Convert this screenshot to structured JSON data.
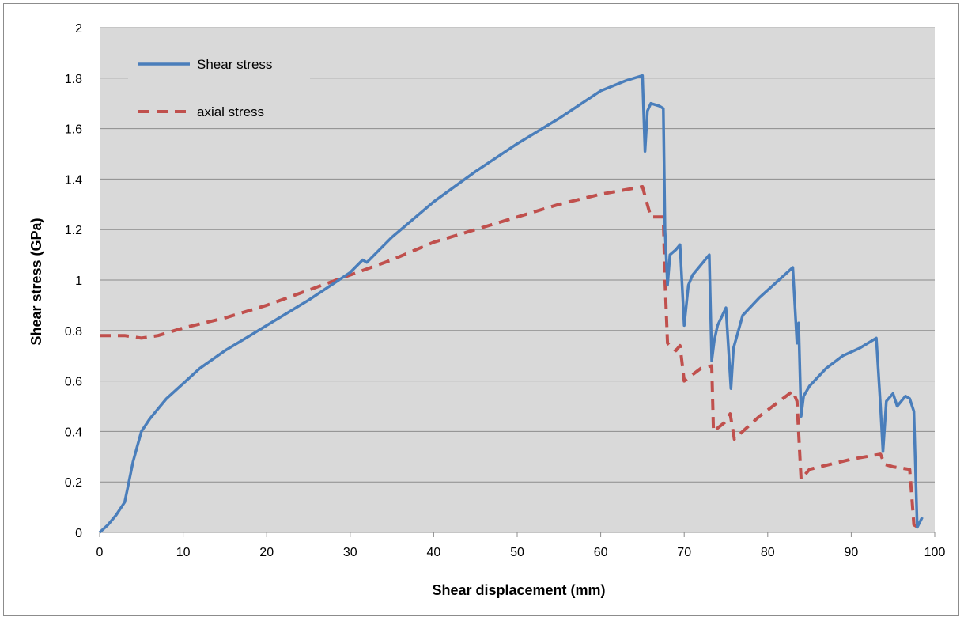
{
  "chart_data": {
    "type": "line",
    "title": "",
    "xlabel": "Shear displacement (mm)",
    "ylabel": "Shear stress (GPa)",
    "xlim": [
      0,
      100
    ],
    "ylim": [
      0,
      2
    ],
    "x_ticks": [
      0,
      10,
      20,
      30,
      40,
      50,
      60,
      70,
      80,
      90,
      100
    ],
    "y_ticks": [
      0,
      0.2,
      0.4,
      0.6,
      0.8,
      1,
      1.2,
      1.4,
      1.6,
      1.8,
      2
    ],
    "x_tick_labels": [
      "0",
      "10",
      "20",
      "30",
      "40",
      "50",
      "60",
      "70",
      "80",
      "90",
      "100"
    ],
    "y_tick_labels": [
      "0",
      "0.2",
      "0.4",
      "0.6",
      "0.8",
      "1",
      "1.2",
      "1.4",
      "1.6",
      "1.8",
      "2"
    ],
    "grid": "horizontal",
    "legend_position": "top-left",
    "plot_background": "#d9d9d9",
    "series": [
      {
        "name": "Shear stress",
        "color": "#4a7ebb",
        "style": "solid",
        "x": [
          0,
          1,
          2,
          3,
          3.5,
          4,
          4.5,
          5,
          6,
          7,
          8,
          10,
          12,
          15,
          18,
          20,
          25,
          30,
          31.5,
          32,
          35,
          40,
          45,
          50,
          55,
          60,
          63,
          65,
          65.3,
          65.6,
          66,
          67,
          67.5,
          67.7,
          68,
          68.3,
          69,
          69.5,
          70,
          70.5,
          71,
          73,
          73.3,
          73.6,
          74,
          75,
          75.6,
          75.9,
          76.5,
          77,
          79,
          81,
          83,
          83.5,
          83.7,
          84,
          84.3,
          85,
          87,
          89,
          91,
          93,
          93.5,
          93.8,
          94.2,
          95,
          95.5,
          96.5,
          97,
          97.5,
          97.9,
          98.5
        ],
        "y": [
          0,
          0.03,
          0.07,
          0.12,
          0.2,
          0.28,
          0.34,
          0.4,
          0.45,
          0.49,
          0.53,
          0.59,
          0.65,
          0.72,
          0.78,
          0.82,
          0.92,
          1.03,
          1.08,
          1.07,
          1.17,
          1.31,
          1.43,
          1.54,
          1.64,
          1.75,
          1.79,
          1.81,
          1.51,
          1.67,
          1.7,
          1.69,
          1.68,
          1.2,
          0.98,
          1.1,
          1.12,
          1.14,
          0.82,
          0.98,
          1.02,
          1.1,
          0.68,
          0.76,
          0.82,
          0.89,
          0.57,
          0.73,
          0.8,
          0.86,
          0.93,
          0.99,
          1.05,
          0.75,
          0.83,
          0.46,
          0.54,
          0.58,
          0.65,
          0.7,
          0.73,
          0.77,
          0.5,
          0.32,
          0.52,
          0.55,
          0.5,
          0.54,
          0.53,
          0.48,
          0.02,
          0.06
        ]
      },
      {
        "name": "axial stress",
        "color": "#c0504d",
        "style": "dashed",
        "x": [
          0,
          3,
          5,
          7,
          10,
          15,
          20,
          25,
          30,
          35,
          40,
          45,
          50,
          55,
          60,
          65,
          66,
          67.5,
          67.7,
          68,
          69,
          69.5,
          70,
          72,
          73.3,
          73.5,
          75,
          75.5,
          76,
          79,
          83,
          83.5,
          84,
          85,
          90,
          93.5,
          94,
          95,
          97,
          97.3,
          97.5,
          98
        ],
        "y": [
          0.78,
          0.78,
          0.77,
          0.78,
          0.81,
          0.85,
          0.9,
          0.96,
          1.02,
          1.08,
          1.15,
          1.2,
          1.25,
          1.3,
          1.34,
          1.37,
          1.25,
          1.25,
          1.0,
          0.75,
          0.72,
          0.74,
          0.6,
          0.65,
          0.66,
          0.4,
          0.44,
          0.47,
          0.37,
          0.46,
          0.56,
          0.52,
          0.21,
          0.25,
          0.29,
          0.31,
          0.27,
          0.26,
          0.25,
          0.12,
          0.03,
          0.02
        ]
      }
    ]
  }
}
